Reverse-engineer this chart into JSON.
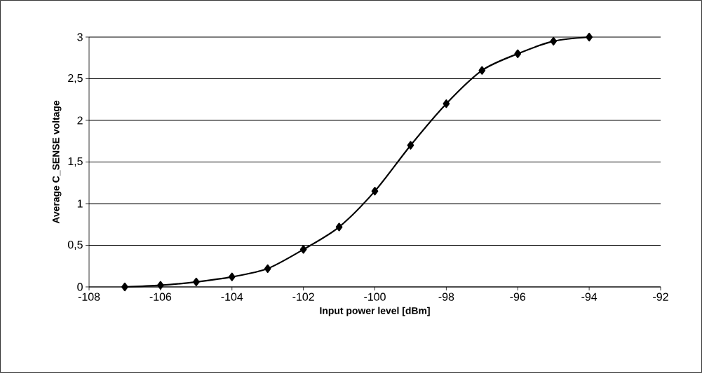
{
  "chart_data": {
    "type": "line",
    "xlabel": "Input power level [dBm]",
    "ylabel": "Average C_SENSE voltage",
    "x": [
      -107,
      -106,
      -105,
      -104,
      -103,
      -102,
      -101,
      -100,
      -99,
      -98,
      -97,
      -96,
      -95,
      -94
    ],
    "series": [
      {
        "color": "#000000",
        "values": [
          0,
          0.02,
          0.06,
          0.12,
          0.22,
          0.45,
          0.72,
          1.15,
          1.7,
          2.2,
          2.6,
          2.8,
          2.95,
          3.0
        ]
      }
    ],
    "xlim": [
      -108,
      -92
    ],
    "xticks": [
      -108,
      -106,
      -104,
      -102,
      -100,
      -98,
      -96,
      -94,
      -92
    ],
    "ylim": [
      0,
      3
    ],
    "yticks": [
      0,
      {
        "value": 0.5,
        "label": "0,5"
      },
      1,
      {
        "value": 1.5,
        "label": "1,5"
      },
      2,
      {
        "value": 2.5,
        "label": "2,5"
      },
      3
    ],
    "grid": "y",
    "marker": "diamond",
    "line_style": "solid"
  }
}
